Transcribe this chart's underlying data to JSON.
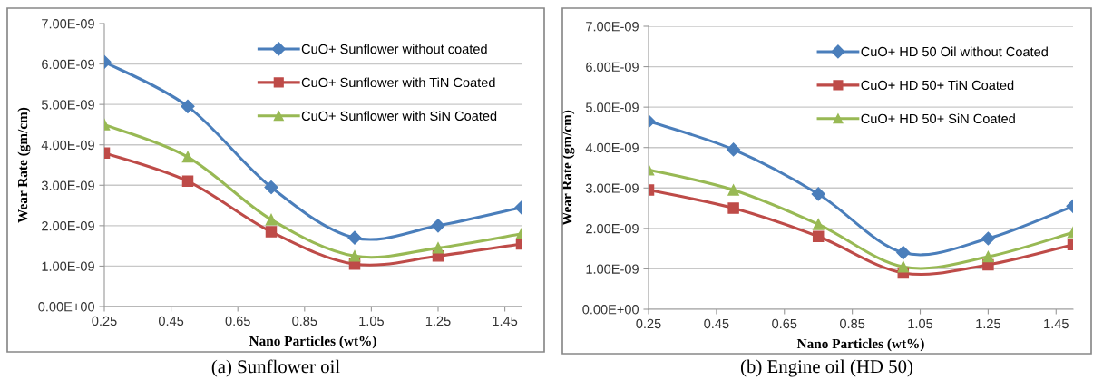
{
  "chart_data": [
    {
      "type": "line",
      "xlabel": "Nano Particles (wt%)",
      "ylabel": "Wear Rate (gm/cm)",
      "annotations": [
        "(a) Sunflower oil"
      ],
      "x": [
        0.25,
        0.5,
        0.75,
        1.0,
        1.25,
        1.5
      ],
      "series": [
        {
          "name": "CuO+ Sunflower without coated",
          "color": "#4a7ebb",
          "marker": "diamond",
          "values": [
            6.05e-09,
            4.95e-09,
            2.95e-09,
            1.7e-09,
            2e-09,
            2.45e-09
          ]
        },
        {
          "name": "CuO+ Sunflower with TiN Coated",
          "color": "#be4b48",
          "marker": "square",
          "values": [
            3.8e-09,
            3.1e-09,
            1.85e-09,
            1.05e-09,
            1.25e-09,
            1.55e-09
          ]
        },
        {
          "name": "CuO+ Sunflower with SiN Coated",
          "color": "#98b954",
          "marker": "triangle",
          "values": [
            4.5e-09,
            3.7e-09,
            2.15e-09,
            1.25e-09,
            1.45e-09,
            1.8e-09
          ]
        }
      ],
      "xlim": [
        0.25,
        1.5
      ],
      "xticks": [
        0.25,
        0.45,
        0.65,
        0.85,
        1.05,
        1.25,
        1.45
      ],
      "ylim": [
        0,
        7e-09
      ],
      "yticks": [
        {
          "value": 0,
          "label": "0.00E+00"
        },
        {
          "value": 1e-09,
          "label": "1.00E-09"
        },
        {
          "value": 2e-09,
          "label": "2.00E-09"
        },
        {
          "value": 3e-09,
          "label": "3.00E-09"
        },
        {
          "value": 4e-09,
          "label": "4.00E-09"
        },
        {
          "value": 5e-09,
          "label": "5.00E-09"
        },
        {
          "value": 6e-09,
          "label": "6.00E-09"
        },
        {
          "value": 7e-09,
          "label": "7.00E-09"
        }
      ],
      "grid": "y",
      "legend": "top right"
    },
    {
      "type": "line",
      "xlabel": "Nano Particles (wt%)",
      "ylabel": "Wear Rate (gm/cm)",
      "annotations": [
        "(b) Engine oil (HD 50)"
      ],
      "x": [
        0.25,
        0.5,
        0.75,
        1.0,
        1.25,
        1.5
      ],
      "series": [
        {
          "name": "CuO+ HD 50 Oil without Coated",
          "color": "#4a7ebb",
          "marker": "diamond",
          "values": [
            4.65e-09,
            3.95e-09,
            2.85e-09,
            1.4e-09,
            1.75e-09,
            2.55e-09
          ]
        },
        {
          "name": "CuO+ HD 50+ TiN Coated",
          "color": "#be4b48",
          "marker": "square",
          "values": [
            2.95e-09,
            2.5e-09,
            1.8e-09,
            9e-10,
            1.1e-09,
            1.6e-09
          ]
        },
        {
          "name": "CuO+ HD 50+ SiN Coated",
          "color": "#98b954",
          "marker": "triangle",
          "values": [
            3.45e-09,
            2.95e-09,
            2.1e-09,
            1.05e-09,
            1.3e-09,
            1.9e-09
          ]
        }
      ],
      "xlim": [
        0.25,
        1.5
      ],
      "xticks": [
        0.25,
        0.45,
        0.65,
        0.85,
        1.05,
        1.25,
        1.45
      ],
      "ylim": [
        0,
        7e-09
      ],
      "yticks": [
        {
          "value": 0,
          "label": "0.00E+00"
        },
        {
          "value": 1e-09,
          "label": "1.00E-09"
        },
        {
          "value": 2e-09,
          "label": "2.00E-09"
        },
        {
          "value": 3e-09,
          "label": "3.00E-09"
        },
        {
          "value": 4e-09,
          "label": "4.00E-09"
        },
        {
          "value": 5e-09,
          "label": "5.00E-09"
        },
        {
          "value": 6e-09,
          "label": "6.00E-09"
        },
        {
          "value": 7e-09,
          "label": "7.00E-09"
        }
      ],
      "grid": "y",
      "legend": "top right"
    }
  ]
}
